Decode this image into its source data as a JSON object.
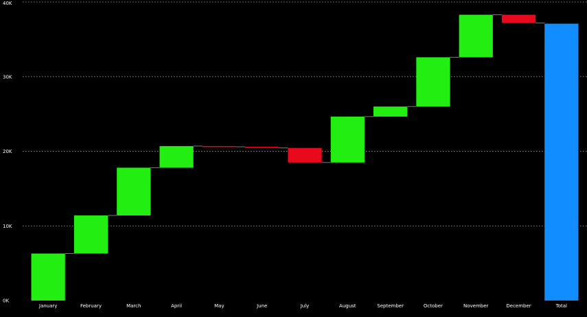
{
  "colors": {
    "background": "#000000",
    "increase": "#22ee11",
    "decrease": "#e8091c",
    "total": "#118dff",
    "gridline": "#8a8a8a",
    "connector": "#7a7a7a",
    "text": "#ffffff"
  },
  "chart_data": {
    "type": "waterfall",
    "categories": [
      "January",
      "February",
      "March",
      "April",
      "May",
      "June",
      "July",
      "August",
      "September",
      "October",
      "November",
      "December",
      "Total"
    ],
    "deltas": [
      6300,
      5100,
      6400,
      2900,
      -100,
      -150,
      -1950,
      6150,
      1350,
      6600,
      5700,
      -1100,
      null
    ],
    "total_label": "Total",
    "total_value": 37100,
    "ylim": [
      0,
      40000
    ],
    "yticks": [
      0,
      10000,
      20000,
      30000,
      40000
    ],
    "yticklabels": [
      "0K",
      "10K",
      "20K",
      "30K",
      "40K"
    ],
    "grid": true,
    "legend": "none",
    "xlabel": "",
    "ylabel": "",
    "title": ""
  }
}
